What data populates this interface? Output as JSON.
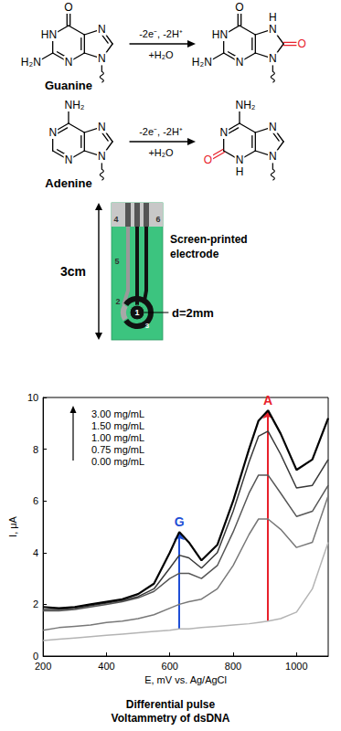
{
  "reactions": [
    {
      "reactant": {
        "name": "Guanine",
        "labels": {
          "O6": "O",
          "N1": "HN",
          "N2": "H₂N",
          "N3": "N",
          "N7": "N",
          "N9": "N"
        }
      },
      "product": {
        "labels": {
          "O6": "O",
          "N1": "HN",
          "N2": "H₂N",
          "N3": "N",
          "N7": "N",
          "H7": "H",
          "O8": "O",
          "N9": "N"
        }
      },
      "conditions": [
        "-2e⁻, -2H⁺",
        "+H₂O"
      ]
    },
    {
      "reactant": {
        "name": "Adenine",
        "labels": {
          "N6": "NH₂",
          "N1": "N",
          "N3": "N",
          "N7": "N",
          "N9": "N"
        }
      },
      "product": {
        "labels": {
          "N6": "NH₂",
          "N1": "N",
          "O2": "O",
          "N3": "N",
          "H3": "H",
          "N7": "N",
          "N9": "N"
        }
      },
      "conditions": [
        "-2e⁻, -2H⁺",
        "+H₂O"
      ]
    }
  ],
  "electrode": {
    "title": [
      "Screen-printed",
      "electrode"
    ],
    "height_label": "3cm",
    "diameter_label": "d=2mm",
    "part_labels": [
      "1",
      "2",
      "3",
      "4",
      "5",
      "6"
    ]
  },
  "chart_data": {
    "type": "line",
    "title": "Differential pulse\nVoltammetry of dsDNA",
    "xlabel": "E, mV vs. Ag/AgCl",
    "ylabel": "I, μA",
    "x": [
      200,
      250,
      300,
      350,
      400,
      450,
      500,
      550,
      600,
      630,
      660,
      700,
      750,
      800,
      850,
      880,
      910,
      950,
      1000,
      1050,
      1100
    ],
    "series": [
      {
        "name": "3.00 mg/mL",
        "color": "#000000",
        "values": [
          1.9,
          1.85,
          1.9,
          2.0,
          2.1,
          2.2,
          2.4,
          2.8,
          4.0,
          4.8,
          4.4,
          3.7,
          4.3,
          6.0,
          8.0,
          9.1,
          9.5,
          8.6,
          7.2,
          7.6,
          9.2
        ]
      },
      {
        "name": "1.50 mg/mL",
        "color": "#383838",
        "values": [
          1.8,
          1.8,
          1.85,
          1.95,
          2.05,
          2.15,
          2.3,
          2.6,
          3.4,
          3.9,
          3.8,
          3.4,
          4.0,
          5.6,
          7.5,
          8.5,
          8.7,
          7.8,
          6.5,
          6.6,
          7.6
        ]
      },
      {
        "name": "1.00 mg/mL",
        "color": "#575757",
        "values": [
          1.75,
          1.75,
          1.8,
          1.9,
          2.0,
          2.1,
          2.25,
          2.5,
          3.0,
          3.2,
          3.2,
          3.0,
          3.5,
          4.8,
          6.3,
          7.0,
          7.0,
          6.3,
          5.4,
          5.6,
          6.6
        ]
      },
      {
        "name": "0.75 mg/mL",
        "color": "#787878",
        "values": [
          1.0,
          1.1,
          1.15,
          1.2,
          1.3,
          1.35,
          1.45,
          1.6,
          1.85,
          2.0,
          2.1,
          2.2,
          2.6,
          3.5,
          4.7,
          5.3,
          5.3,
          4.9,
          4.2,
          4.4,
          6.2
        ]
      },
      {
        "name": "0.00 mg/mL",
        "color": "#b4b4b4",
        "values": [
          0.6,
          0.65,
          0.7,
          0.75,
          0.8,
          0.85,
          0.9,
          0.95,
          1.0,
          1.05,
          1.05,
          1.1,
          1.15,
          1.2,
          1.25,
          1.3,
          1.35,
          1.45,
          1.7,
          2.6,
          4.4
        ]
      }
    ],
    "xlim": [
      200,
      1100
    ],
    "xticks": [
      200,
      400,
      600,
      800,
      1000
    ],
    "ylim": [
      0,
      10
    ],
    "yticks": [
      0,
      2,
      4,
      6,
      8,
      10
    ],
    "grid": false,
    "legend": "top-left",
    "annotations": [
      {
        "text": "G",
        "x": 630,
        "color": "#1f4fd6"
      },
      {
        "text": "A",
        "x": 910,
        "color": "#e8212b"
      }
    ]
  }
}
